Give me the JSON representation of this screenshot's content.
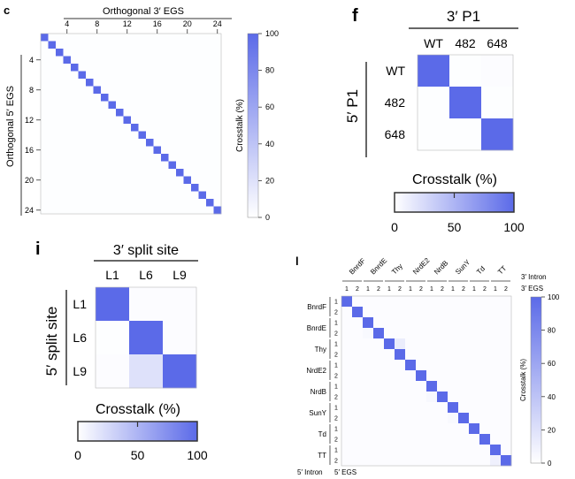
{
  "colors": {
    "accent": "#5b6ae8",
    "low": "#ffffff",
    "frame": "#333333"
  },
  "panels": [
    {
      "letter": "c",
      "xlabel": "Orthogonal 3′ EGS",
      "ylabel": "Orthogonal 5′ EGS",
      "colorbar_label": "Crosstalk (%)"
    },
    {
      "letter": "f",
      "xlabel": "3′ P1",
      "ylabel": "5′ P1",
      "colorbar_label": "Crosstalk (%)"
    },
    {
      "letter": "i",
      "xlabel": "3′ split site",
      "ylabel": "5′ split site",
      "colorbar_label": "Crosstalk (%)"
    },
    {
      "letter": "l",
      "xlabel_top1": "3′ Intron",
      "xlabel_top2": "3′ EGS",
      "ylabel_bottom1": "5′ Intron",
      "ylabel_bottom2": "5′ EGS",
      "colorbar_label": "Crosstalk (%)"
    }
  ],
  "chart_data": [
    {
      "type": "heatmap",
      "panel": "c",
      "x_ticks": [
        "4",
        "8",
        "12",
        "16",
        "20",
        "24"
      ],
      "y_ticks": [
        "4",
        "8",
        "12",
        "16",
        "20",
        "24"
      ],
      "size": 24,
      "diagonal": 100,
      "off_diagonal": 1,
      "colorbar_ticks": [
        "0",
        "20",
        "40",
        "60",
        "80",
        "100"
      ],
      "zlim": [
        0,
        100
      ]
    },
    {
      "type": "heatmap",
      "panel": "f",
      "categories": [
        "WT",
        "482",
        "648"
      ],
      "values": [
        [
          100,
          1,
          2
        ],
        [
          1,
          100,
          1
        ],
        [
          1,
          1,
          100
        ]
      ],
      "colorbar_ticks": [
        "0",
        "50",
        "100"
      ],
      "zlim": [
        0,
        100
      ]
    },
    {
      "type": "heatmap",
      "panel": "i",
      "categories": [
        "L1",
        "L6",
        "L9"
      ],
      "values": [
        [
          100,
          2,
          2
        ],
        [
          1,
          100,
          2
        ],
        [
          2,
          20,
          100
        ]
      ],
      "colorbar_ticks": [
        "0",
        "50",
        "100"
      ],
      "zlim": [
        0,
        100
      ]
    },
    {
      "type": "heatmap",
      "panel": "l",
      "groups": [
        "BnrdF",
        "BnrdE",
        "Thy",
        "NrdE2",
        "NrdB",
        "SunY",
        "Td",
        "TT"
      ],
      "sub_ticks": [
        "1",
        "2"
      ],
      "diagonal": 100,
      "off_diagonal": 2,
      "highlights": [
        {
          "row": 4,
          "col": 5,
          "value": 12
        },
        {
          "row": 15,
          "col": 14,
          "value": 10
        },
        {
          "row": 3,
          "col": 2,
          "value": 4
        },
        {
          "row": 9,
          "col": 8,
          "value": 5
        },
        {
          "row": 11,
          "col": 10,
          "value": 4
        }
      ],
      "colorbar_ticks": [
        "0",
        "20",
        "40",
        "60",
        "80",
        "100"
      ],
      "zlim": [
        0,
        100
      ]
    }
  ]
}
